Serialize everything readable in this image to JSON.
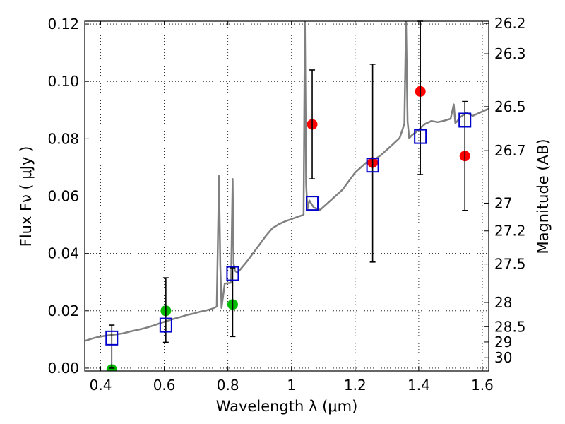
{
  "chart_data": {
    "type": "scatter",
    "title": "",
    "xlabel": "Wavelength  λ (μm)",
    "ylabel": "Flux  Fν  ( μJy )",
    "y2label": "Magnitude (AB)",
    "xlim": [
      0.35,
      1.62
    ],
    "ylim": [
      -0.001,
      0.121
    ],
    "grid": true,
    "x_ticks": [
      {
        "value": 0.4,
        "label": "0.4"
      },
      {
        "value": 0.6,
        "label": "0.6"
      },
      {
        "value": 0.8,
        "label": "0.8"
      },
      {
        "value": 1.0,
        "label": "1"
      },
      {
        "value": 1.2,
        "label": "1.2"
      },
      {
        "value": 1.4,
        "label": "1.4"
      },
      {
        "value": 1.6,
        "label": "1.6"
      }
    ],
    "y_ticks": [
      {
        "value": 0.0,
        "label": "0.00"
      },
      {
        "value": 0.02,
        "label": "0.02"
      },
      {
        "value": 0.04,
        "label": "0.04"
      },
      {
        "value": 0.06,
        "label": "0.06"
      },
      {
        "value": 0.08,
        "label": "0.08"
      },
      {
        "value": 0.1,
        "label": "0.10"
      },
      {
        "value": 0.12,
        "label": "0.12"
      }
    ],
    "y2_ticks": [
      {
        "label": "26.2"
      },
      {
        "label": "26.3"
      },
      {
        "label": "26.5"
      },
      {
        "label": "26.7"
      },
      {
        "label": "27"
      },
      {
        "label": "27.2"
      },
      {
        "label": "27.5"
      },
      {
        "label": "28"
      },
      {
        "label": "28.5"
      },
      {
        "label": "29"
      },
      {
        "label": "30"
      }
    ],
    "series": [
      {
        "kind": "line",
        "color": "#808080",
        "x": [
          0.35,
          0.37,
          0.39,
          0.41,
          0.43,
          0.45,
          0.47,
          0.49,
          0.51,
          0.53,
          0.55,
          0.57,
          0.59,
          0.61,
          0.63,
          0.65,
          0.67,
          0.69,
          0.71,
          0.73,
          0.75,
          0.765,
          0.772,
          0.776,
          0.78,
          0.79,
          0.81,
          0.815,
          0.818,
          0.822,
          0.83,
          0.845,
          0.86,
          0.88,
          0.9,
          0.92,
          0.94,
          0.96,
          0.98,
          1.0,
          1.02,
          1.038,
          1.042,
          1.046,
          1.05,
          1.056,
          1.07,
          1.09,
          1.1,
          1.12,
          1.14,
          1.16,
          1.18,
          1.2,
          1.22,
          1.24,
          1.26,
          1.28,
          1.3,
          1.32,
          1.34,
          1.355,
          1.36,
          1.365,
          1.37,
          1.378,
          1.39,
          1.4,
          1.42,
          1.44,
          1.46,
          1.48,
          1.5,
          1.51,
          1.515,
          1.52,
          1.53,
          1.55,
          1.57,
          1.59,
          1.61,
          1.62
        ],
        "y": [
          0.0095,
          0.0102,
          0.0108,
          0.0112,
          0.0115,
          0.0118,
          0.0121,
          0.0127,
          0.0132,
          0.0137,
          0.0143,
          0.015,
          0.0158,
          0.0165,
          0.0172,
          0.0178,
          0.0185,
          0.019,
          0.0196,
          0.0201,
          0.0207,
          0.0215,
          0.067,
          0.036,
          0.021,
          0.0295,
          0.0298,
          0.066,
          0.0365,
          0.034,
          0.0332,
          0.0352,
          0.0372,
          0.0402,
          0.0432,
          0.0462,
          0.0488,
          0.0502,
          0.0512,
          0.052,
          0.0528,
          0.0535,
          0.121,
          0.064,
          0.0555,
          0.0585,
          0.056,
          0.0552,
          0.0562,
          0.0582,
          0.0602,
          0.0622,
          0.0652,
          0.0682,
          0.0702,
          0.0722,
          0.0727,
          0.0742,
          0.0762,
          0.0782,
          0.0803,
          0.0852,
          0.121,
          0.086,
          0.0802,
          0.0812,
          0.0822,
          0.0832,
          0.0852,
          0.0862,
          0.0858,
          0.0863,
          0.087,
          0.092,
          0.0855,
          0.086,
          0.0875,
          0.089,
          0.088,
          0.089,
          0.09,
          0.0905
        ]
      },
      {
        "kind": "errorbar",
        "color": "#000000",
        "points": [
          {
            "x": 0.435,
            "y0": 0.0,
            "y1": 0.015
          },
          {
            "x": 0.605,
            "y0": 0.009,
            "y1": 0.0315
          },
          {
            "x": 0.815,
            "y0": 0.011,
            "y1": 0.035
          },
          {
            "x": 1.065,
            "y0": 0.066,
            "y1": 0.104
          },
          {
            "x": 1.255,
            "y0": 0.037,
            "y1": 0.106
          },
          {
            "x": 1.405,
            "y0": 0.0675,
            "y1": 0.121
          },
          {
            "x": 1.545,
            "y0": 0.055,
            "y1": 0.093
          }
        ]
      },
      {
        "kind": "marker-circle",
        "color": "#00bb00",
        "x": [
          0.435,
          0.605,
          0.815
        ],
        "y": [
          -0.0005,
          0.02,
          0.0222
        ]
      },
      {
        "kind": "marker-circle",
        "color": "#ff0000",
        "x": [
          1.065,
          1.255,
          1.405,
          1.545
        ],
        "y": [
          0.085,
          0.0717,
          0.0965,
          0.074
        ]
      },
      {
        "kind": "marker-square",
        "color": "#0000cc",
        "x": [
          0.435,
          0.605,
          0.815,
          1.065,
          1.255,
          1.405,
          1.545
        ],
        "y": [
          0.0105,
          0.015,
          0.033,
          0.0575,
          0.0708,
          0.0808,
          0.0865
        ]
      }
    ]
  }
}
